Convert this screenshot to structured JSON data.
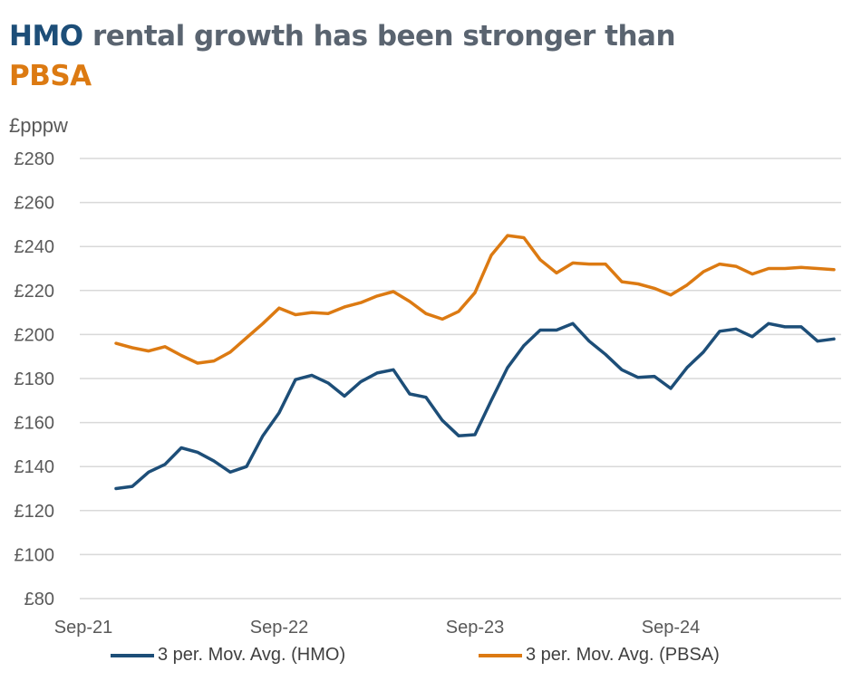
{
  "title": {
    "part1": "HMO",
    "part2": " rental growth has been stronger than",
    "part3": "PBSA"
  },
  "colors": {
    "hmo": "#1d4e78",
    "pbsa": "#dc7a12",
    "title_text": "#5a6470",
    "grid": "#d9d9d9"
  },
  "chart_data": {
    "type": "line",
    "ylabel": "£pppw",
    "ylim": [
      80,
      280
    ],
    "ytick_step": 20,
    "ytick_labels": [
      "£80",
      "£100",
      "£120",
      "£140",
      "£160",
      "£180",
      "£200",
      "£220",
      "£240",
      "£260",
      "£280"
    ],
    "x_tick_labels": [
      {
        "label": "Sep-21",
        "index": 0
      },
      {
        "label": "Sep-22",
        "index": 12
      },
      {
        "label": "Sep-23",
        "index": 24
      },
      {
        "label": "Sep-24",
        "index": 36
      }
    ],
    "x_period_count": 48,
    "grid": true,
    "legend_position": "bottom",
    "series": [
      {
        "name": "3 per. Mov. Avg. (HMO)",
        "color": "#1d4e78",
        "start_index": 2,
        "values": [
          130,
          131,
          137.5,
          141,
          148.5,
          146.5,
          142.5,
          137.5,
          140,
          154,
          164.5,
          179.5,
          181.5,
          178,
          172,
          178.5,
          182.5,
          184,
          173,
          171.5,
          161,
          154,
          154.5,
          170,
          185,
          195,
          202,
          202,
          205,
          197,
          191,
          184,
          180.5,
          181,
          175.5,
          185,
          192,
          201.5,
          202.5,
          199,
          205,
          203.5,
          203.5,
          197,
          198
        ]
      },
      {
        "name": "3 per. Mov. Avg. (PBSA)",
        "color": "#dc7a12",
        "start_index": 2,
        "values": [
          196,
          194,
          192.5,
          194.5,
          190.5,
          187,
          188,
          192,
          198.5,
          205,
          212,
          209,
          210,
          209.5,
          212.5,
          214.5,
          217.5,
          219.5,
          215,
          209.5,
          207,
          210.5,
          219,
          236,
          245,
          244,
          234,
          228,
          232.5,
          232,
          232,
          224,
          223,
          221,
          218,
          222.5,
          228.5,
          232,
          231,
          227.5,
          230,
          230,
          230.5,
          230,
          229.5
        ]
      }
    ]
  }
}
